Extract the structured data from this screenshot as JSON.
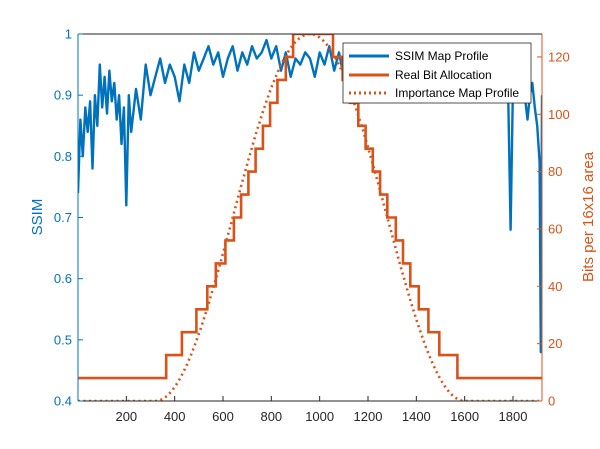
{
  "chart_data": {
    "type": "line",
    "xlabel": "",
    "xlim": [
      0,
      1920
    ],
    "xticks": [
      200,
      400,
      600,
      800,
      1000,
      1200,
      1400,
      1600,
      1800
    ],
    "ylabel_left": "SSIM",
    "ylim_left": [
      0.4,
      1.0
    ],
    "yticks_left": [
      "0.4",
      "0.5",
      "0.6",
      "0.7",
      "0.8",
      "0.9",
      "1"
    ],
    "ylabel_right": "Bits per 16x16 area",
    "ylim_right": [
      0,
      128
    ],
    "yticks_right": [
      "0",
      "20",
      "40",
      "60",
      "80",
      "100",
      "120"
    ],
    "legend_position": "top-right",
    "grid": false,
    "colors": {
      "ssim": "#0072BD",
      "alloc": "#D95319",
      "axis": "#262626"
    },
    "series": [
      {
        "name": "SSIM Map Profile",
        "axis": "left",
        "style": "solid",
        "x": [
          0,
          10,
          20,
          30,
          40,
          50,
          60,
          70,
          80,
          90,
          100,
          110,
          120,
          130,
          140,
          150,
          160,
          170,
          180,
          190,
          200,
          210,
          220,
          240,
          260,
          280,
          300,
          320,
          340,
          360,
          380,
          400,
          420,
          440,
          460,
          480,
          500,
          520,
          540,
          560,
          580,
          600,
          620,
          640,
          660,
          680,
          700,
          720,
          740,
          760,
          780,
          800,
          820,
          840,
          860,
          880,
          900,
          920,
          940,
          960,
          980,
          1000,
          1020,
          1040,
          1060,
          1080,
          1100,
          1120,
          1140,
          1160,
          1200,
          1300,
          1400,
          1500,
          1600,
          1700,
          1720,
          1740,
          1760,
          1770,
          1780,
          1790,
          1800,
          1820,
          1840,
          1860,
          1870,
          1880,
          1890,
          1900,
          1910,
          1915,
          1920
        ],
        "values": [
          0.74,
          0.86,
          0.8,
          0.88,
          0.84,
          0.89,
          0.78,
          0.9,
          0.85,
          0.95,
          0.88,
          0.93,
          0.87,
          0.94,
          0.89,
          0.92,
          0.86,
          0.9,
          0.82,
          0.88,
          0.72,
          0.9,
          0.84,
          0.91,
          0.86,
          0.95,
          0.9,
          0.93,
          0.96,
          0.92,
          0.95,
          0.93,
          0.89,
          0.95,
          0.92,
          0.97,
          0.94,
          0.96,
          0.98,
          0.95,
          0.97,
          0.93,
          0.96,
          0.98,
          0.94,
          0.97,
          0.95,
          0.98,
          0.96,
          0.97,
          0.99,
          0.96,
          0.98,
          0.94,
          0.97,
          0.93,
          0.96,
          0.95,
          0.97,
          0.96,
          0.93,
          0.97,
          0.95,
          0.98,
          0.94,
          0.97,
          0.93,
          0.96,
          0.95,
          0.98,
          0.96,
          0.97,
          0.95,
          0.96,
          0.94,
          0.97,
          0.9,
          0.95,
          0.93,
          0.96,
          0.9,
          0.68,
          0.92,
          0.89,
          0.93,
          0.86,
          0.9,
          0.92,
          0.88,
          0.85,
          0.79,
          0.48,
          0.9
        ]
      },
      {
        "name": "Real Bit Allocation",
        "axis": "right",
        "style": "solid-step",
        "x": [
          0,
          365,
          365,
          430,
          430,
          490,
          490,
          535,
          535,
          570,
          570,
          610,
          610,
          645,
          645,
          675,
          675,
          705,
          705,
          735,
          735,
          765,
          765,
          795,
          795,
          825,
          825,
          860,
          860,
          890,
          890,
          1055,
          1055,
          1095,
          1095,
          1125,
          1125,
          1160,
          1160,
          1190,
          1190,
          1220,
          1220,
          1250,
          1250,
          1280,
          1280,
          1315,
          1315,
          1345,
          1345,
          1375,
          1375,
          1410,
          1410,
          1450,
          1450,
          1495,
          1495,
          1570,
          1570,
          1920
        ],
        "values": [
          8,
          8,
          16,
          16,
          24,
          24,
          32,
          32,
          40,
          40,
          48,
          48,
          56,
          56,
          64,
          64,
          72,
          72,
          80,
          80,
          88,
          88,
          96,
          96,
          104,
          104,
          112,
          112,
          120,
          120,
          128,
          128,
          120,
          120,
          112,
          112,
          104,
          104,
          96,
          96,
          88,
          88,
          80,
          80,
          72,
          72,
          64,
          64,
          56,
          56,
          48,
          48,
          40,
          40,
          32,
          32,
          24,
          24,
          16,
          16,
          8,
          8
        ]
      },
      {
        "name": "Importance Map Profile",
        "axis": "right",
        "style": "dotted",
        "center": 960,
        "half_width": 640,
        "peak": 128,
        "baseline": 0
      }
    ]
  }
}
